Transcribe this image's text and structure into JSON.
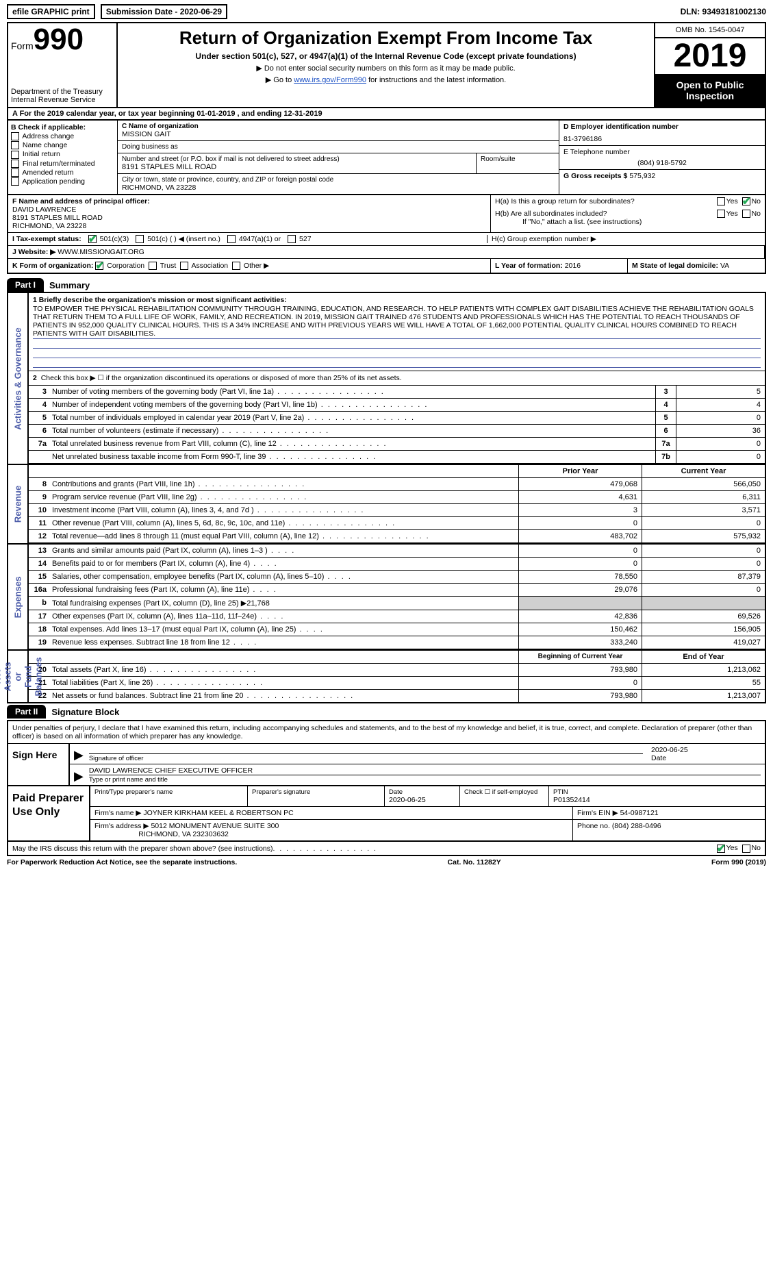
{
  "topbar": {
    "efile": "efile GRAPHIC print",
    "submission_label": "Submission Date - 2020-06-29",
    "dln": "DLN: 93493181002130"
  },
  "header": {
    "form_prefix": "Form",
    "form_number": "990",
    "dept": "Department of the Treasury\nInternal Revenue Service",
    "title": "Return of Organization Exempt From Income Tax",
    "subtitle": "Under section 501(c), 527, or 4947(a)(1) of the Internal Revenue Code (except private foundations)",
    "hint1": "▶ Do not enter social security numbers on this form as it may be made public.",
    "hint2_prefix": "▶ Go to ",
    "hint2_link": "www.irs.gov/Form990",
    "hint2_suffix": " for instructions and the latest information.",
    "omb": "OMB No. 1545-0047",
    "year": "2019",
    "open": "Open to Public Inspection"
  },
  "rowA": "A For the 2019 calendar year, or tax year beginning 01-01-2019   , and ending 12-31-2019",
  "B": {
    "label": "B Check if applicable:",
    "opts": [
      "Address change",
      "Name change",
      "Initial return",
      "Final return/terminated",
      "Amended return",
      "Application pending"
    ]
  },
  "C": {
    "name_lbl": "C Name of organization",
    "name": "MISSION GAIT",
    "dba_lbl": "Doing business as",
    "dba": "",
    "street_lbl": "Number and street (or P.O. box if mail is not delivered to street address)",
    "street": "8191 STAPLES MILL ROAD",
    "room_lbl": "Room/suite",
    "city_lbl": "City or town, state or province, country, and ZIP or foreign postal code",
    "city": "RICHMOND, VA  23228"
  },
  "D": {
    "lbl": "D Employer identification number",
    "val": "81-3796186"
  },
  "E": {
    "lbl": "E Telephone number",
    "val": "(804) 918-5792"
  },
  "G": {
    "lbl": "G Gross receipts $",
    "val": "575,932"
  },
  "F": {
    "lbl": "F  Name and address of principal officer:",
    "name": "DAVID LAWRENCE",
    "street": "8191 STAPLES MILL ROAD",
    "city": "RICHMOND, VA  23228"
  },
  "H": {
    "a": "H(a)  Is this a group return for subordinates?",
    "b": "H(b)  Are all subordinates included?",
    "b_note": "If \"No,\" attach a list. (see instructions)",
    "c": "H(c)  Group exemption number ▶",
    "yes": "Yes",
    "no": "No"
  },
  "I": {
    "lbl": "I  Tax-exempt status:",
    "o1": "501(c)(3)",
    "o2": "501(c) (  ) ◀ (insert no.)",
    "o3": "4947(a)(1) or",
    "o4": "527"
  },
  "J": {
    "lbl": "J Website: ▶",
    "val": "WWW.MISSIONGAIT.ORG"
  },
  "K": {
    "lbl": "K Form of organization:",
    "opts": [
      "Corporation",
      "Trust",
      "Association",
      "Other ▶"
    ]
  },
  "L": {
    "lbl": "L Year of formation:",
    "val": "2016"
  },
  "M": {
    "lbl": "M State of legal domicile:",
    "val": "VA"
  },
  "part1": {
    "tab": "Part I",
    "title": "Summary"
  },
  "vtabs": {
    "ag": "Activities & Governance",
    "rev": "Revenue",
    "exp": "Expenses",
    "na": "Net Assets or\nFund Balances"
  },
  "mission": {
    "lbl": "1   Briefly describe the organization's mission or most significant activities:",
    "text": "TO EMPOWER THE PHYSICAL REHABILITATION COMMUNITY THROUGH TRAINING, EDUCATION, AND RESEARCH. TO HELP PATIENTS WITH COMPLEX GAIT DISABILITIES ACHIEVE THE REHABILITATION GOALS THAT RETURN THEM TO A FULL LIFE OF WORK, FAMILY, AND RECREATION. IN 2019, MISSION GAIT TRAINED 476 STUDENTS AND PROFESSIONALS WHICH HAS THE POTENTIAL TO REACH THOUSANDS OF PATIENTS IN 952,000 QUALITY CLINICAL HOURS. THIS IS A 34% INCREASE AND WITH PREVIOUS YEARS WE WILL HAVE A TOTAL OF 1,662,000 POTENTIAL QUALITY CLINICAL HOURS COMBINED TO REACH PATIENTS WITH GAIT DISABILITIES."
  },
  "line2": "Check this box ▶ ☐ if the organization discontinued its operations or disposed of more than 25% of its net assets.",
  "govRows": [
    {
      "n": "3",
      "d": "Number of voting members of the governing body (Part VI, line 1a)",
      "b": "3",
      "v": "5"
    },
    {
      "n": "4",
      "d": "Number of independent voting members of the governing body (Part VI, line 1b)",
      "b": "4",
      "v": "4"
    },
    {
      "n": "5",
      "d": "Total number of individuals employed in calendar year 2019 (Part V, line 2a)",
      "b": "5",
      "v": "0"
    },
    {
      "n": "6",
      "d": "Total number of volunteers (estimate if necessary)",
      "b": "6",
      "v": "36"
    },
    {
      "n": "7a",
      "d": "Total unrelated business revenue from Part VIII, column (C), line 12",
      "b": "7a",
      "v": "0"
    },
    {
      "n": "",
      "d": "Net unrelated business taxable income from Form 990-T, line 39",
      "b": "7b",
      "v": "0"
    }
  ],
  "colHdr": {
    "prior": "Prior Year",
    "current": "Current Year"
  },
  "revRows": [
    {
      "n": "8",
      "d": "Contributions and grants (Part VIII, line 1h)",
      "p": "479,068",
      "c": "566,050"
    },
    {
      "n": "9",
      "d": "Program service revenue (Part VIII, line 2g)",
      "p": "4,631",
      "c": "6,311"
    },
    {
      "n": "10",
      "d": "Investment income (Part VIII, column (A), lines 3, 4, and 7d )",
      "p": "3",
      "c": "3,571"
    },
    {
      "n": "11",
      "d": "Other revenue (Part VIII, column (A), lines 5, 6d, 8c, 9c, 10c, and 11e)",
      "p": "0",
      "c": "0"
    },
    {
      "n": "12",
      "d": "Total revenue—add lines 8 through 11 (must equal Part VIII, column (A), line 12)",
      "p": "483,702",
      "c": "575,932"
    }
  ],
  "expRows": [
    {
      "n": "13",
      "d": "Grants and similar amounts paid (Part IX, column (A), lines 1–3 )",
      "p": "0",
      "c": "0"
    },
    {
      "n": "14",
      "d": "Benefits paid to or for members (Part IX, column (A), line 4)",
      "p": "0",
      "c": "0"
    },
    {
      "n": "15",
      "d": "Salaries, other compensation, employee benefits (Part IX, column (A), lines 5–10)",
      "p": "78,550",
      "c": "87,379"
    },
    {
      "n": "16a",
      "d": "Professional fundraising fees (Part IX, column (A), line 11e)",
      "p": "29,076",
      "c": "0"
    },
    {
      "n": "b",
      "d": "Total fundraising expenses (Part IX, column (D), line 25) ▶21,768",
      "p": "",
      "c": "",
      "grey": true
    },
    {
      "n": "17",
      "d": "Other expenses (Part IX, column (A), lines 11a–11d, 11f–24e)",
      "p": "42,836",
      "c": "69,526"
    },
    {
      "n": "18",
      "d": "Total expenses. Add lines 13–17 (must equal Part IX, column (A), line 25)",
      "p": "150,462",
      "c": "156,905"
    },
    {
      "n": "19",
      "d": "Revenue less expenses. Subtract line 18 from line 12",
      "p": "333,240",
      "c": "419,027"
    }
  ],
  "naHdr": {
    "b": "Beginning of Current Year",
    "e": "End of Year"
  },
  "naRows": [
    {
      "n": "20",
      "d": "Total assets (Part X, line 16)",
      "p": "793,980",
      "c": "1,213,062"
    },
    {
      "n": "21",
      "d": "Total liabilities (Part X, line 26)",
      "p": "0",
      "c": "55"
    },
    {
      "n": "22",
      "d": "Net assets or fund balances. Subtract line 21 from line 20",
      "p": "793,980",
      "c": "1,213,007"
    }
  ],
  "part2": {
    "tab": "Part II",
    "title": "Signature Block"
  },
  "sig": {
    "perjury": "Under penalties of perjury, I declare that I have examined this return, including accompanying schedules and statements, and to the best of my knowledge and belief, it is true, correct, and complete. Declaration of preparer (other than officer) is based on all information of which preparer has any knowledge.",
    "here": "Sign Here",
    "sig_lbl": "Signature of officer",
    "date_lbl": "Date",
    "date": "2020-06-25",
    "name": "DAVID LAWRENCE  CHIEF EXECUTIVE OFFICER",
    "name_lbl": "Type or print name and title"
  },
  "paid": {
    "lbl": "Paid Preparer Use Only",
    "h1": "Print/Type preparer's name",
    "h2": "Preparer's signature",
    "h3": "Date",
    "h3v": "2020-06-25",
    "h4": "Check ☐ if self-employed",
    "h5": "PTIN",
    "h5v": "P01352414",
    "firm_lbl": "Firm's name    ▶",
    "firm": "JOYNER KIRKHAM KEEL & ROBERTSON PC",
    "ein_lbl": "Firm's EIN ▶",
    "ein": "54-0987121",
    "addr_lbl": "Firm's address ▶",
    "addr1": "5012 MONUMENT AVENUE SUITE 300",
    "addr2": "RICHMOND, VA  232303632",
    "phone_lbl": "Phone no.",
    "phone": "(804) 288-0496"
  },
  "discuss": {
    "q": "May the IRS discuss this return with the preparer shown above? (see instructions)",
    "yes": "Yes",
    "no": "No"
  },
  "footer": {
    "left": "For Paperwork Reduction Act Notice, see the separate instructions.",
    "mid": "Cat. No. 11282Y",
    "right": "Form 990 (2019)"
  }
}
